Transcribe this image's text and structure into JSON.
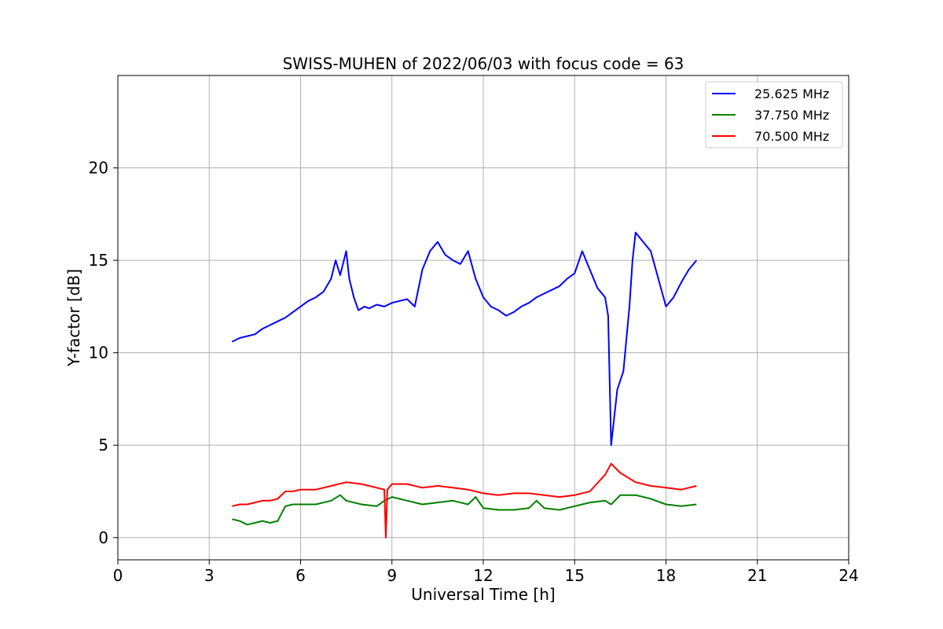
{
  "chart_data": {
    "type": "line",
    "title": "SWISS-MUHEN of 2022/06/03 with focus code = 63",
    "xlabel": "Universal Time [h]",
    "ylabel": "Y-factor [dB]",
    "xlim": [
      0,
      24
    ],
    "ylim": [
      -1.2,
      25
    ],
    "xticks": [
      0,
      3,
      6,
      9,
      12,
      15,
      18,
      21,
      24
    ],
    "yticks": [
      0,
      5,
      10,
      15,
      20
    ],
    "grid": true,
    "legend_position": "top-right",
    "series": [
      {
        "name": "25.625 MHz",
        "color": "#0000ff",
        "x": [
          3.75,
          4.0,
          4.25,
          4.5,
          4.75,
          5.0,
          5.25,
          5.5,
          5.75,
          6.0,
          6.25,
          6.5,
          6.75,
          7.0,
          7.15,
          7.3,
          7.5,
          7.6,
          7.75,
          7.9,
          8.1,
          8.25,
          8.5,
          8.75,
          9.0,
          9.25,
          9.5,
          9.75,
          10.0,
          10.25,
          10.5,
          10.75,
          11.0,
          11.25,
          11.5,
          11.75,
          12.0,
          12.25,
          12.5,
          12.75,
          13.0,
          13.25,
          13.5,
          13.75,
          14.0,
          14.25,
          14.5,
          14.75,
          15.0,
          15.25,
          15.5,
          15.75,
          16.0,
          16.1,
          16.2,
          16.4,
          16.6,
          16.8,
          16.9,
          17.0,
          17.25,
          17.5,
          17.75,
          18.0,
          18.25,
          18.5,
          18.75,
          19.0
        ],
        "y": [
          10.6,
          10.8,
          10.9,
          11.0,
          11.3,
          11.5,
          11.7,
          11.9,
          12.2,
          12.5,
          12.8,
          13.0,
          13.3,
          14.0,
          15.0,
          14.2,
          15.5,
          14.0,
          13.0,
          12.3,
          12.5,
          12.4,
          12.6,
          12.5,
          12.7,
          12.8,
          12.9,
          12.5,
          14.5,
          15.5,
          16.0,
          15.3,
          15.0,
          14.8,
          15.5,
          14.0,
          13.0,
          12.5,
          12.3,
          12.0,
          12.2,
          12.5,
          12.7,
          13.0,
          13.2,
          13.4,
          13.6,
          14.0,
          14.3,
          15.5,
          14.5,
          13.5,
          13.0,
          12.0,
          5.0,
          8.0,
          9.0,
          12.5,
          15.0,
          16.5,
          16.0,
          15.5,
          14.0,
          12.5,
          13.0,
          13.8,
          14.5,
          15.0
        ]
      },
      {
        "name": "37.750 MHz",
        "color": "#008000",
        "x": [
          3.75,
          4.0,
          4.25,
          4.5,
          4.75,
          5.0,
          5.25,
          5.5,
          5.75,
          6.0,
          6.5,
          7.0,
          7.3,
          7.5,
          8.0,
          8.5,
          8.75,
          9.0,
          9.5,
          10.0,
          10.5,
          11.0,
          11.5,
          11.75,
          12.0,
          12.5,
          13.0,
          13.5,
          13.75,
          14.0,
          14.5,
          15.0,
          15.5,
          16.0,
          16.2,
          16.5,
          17.0,
          17.5,
          18.0,
          18.5,
          19.0
        ],
        "y": [
          1.0,
          0.9,
          0.7,
          0.8,
          0.9,
          0.8,
          0.9,
          1.7,
          1.8,
          1.8,
          1.8,
          2.0,
          2.3,
          2.0,
          1.8,
          1.7,
          2.0,
          2.2,
          2.0,
          1.8,
          1.9,
          2.0,
          1.8,
          2.2,
          1.6,
          1.5,
          1.5,
          1.6,
          2.0,
          1.6,
          1.5,
          1.7,
          1.9,
          2.0,
          1.8,
          2.3,
          2.3,
          2.1,
          1.8,
          1.7,
          1.8
        ]
      },
      {
        "name": "70.500 MHz",
        "color": "#ff0000",
        "x": [
          3.75,
          4.0,
          4.25,
          4.5,
          4.75,
          5.0,
          5.25,
          5.5,
          5.75,
          6.0,
          6.5,
          7.0,
          7.5,
          8.0,
          8.5,
          8.75,
          8.8,
          8.85,
          9.0,
          9.5,
          10.0,
          10.5,
          11.0,
          11.5,
          12.0,
          12.5,
          13.0,
          13.5,
          14.0,
          14.5,
          15.0,
          15.5,
          16.0,
          16.2,
          16.5,
          17.0,
          17.5,
          18.0,
          18.5,
          19.0
        ],
        "y": [
          1.7,
          1.8,
          1.8,
          1.9,
          2.0,
          2.0,
          2.1,
          2.5,
          2.5,
          2.6,
          2.6,
          2.8,
          3.0,
          2.9,
          2.7,
          2.6,
          0.0,
          2.6,
          2.9,
          2.9,
          2.7,
          2.8,
          2.7,
          2.6,
          2.4,
          2.3,
          2.4,
          2.4,
          2.3,
          2.2,
          2.3,
          2.5,
          3.4,
          4.0,
          3.5,
          3.0,
          2.8,
          2.7,
          2.6,
          2.8
        ]
      }
    ]
  }
}
